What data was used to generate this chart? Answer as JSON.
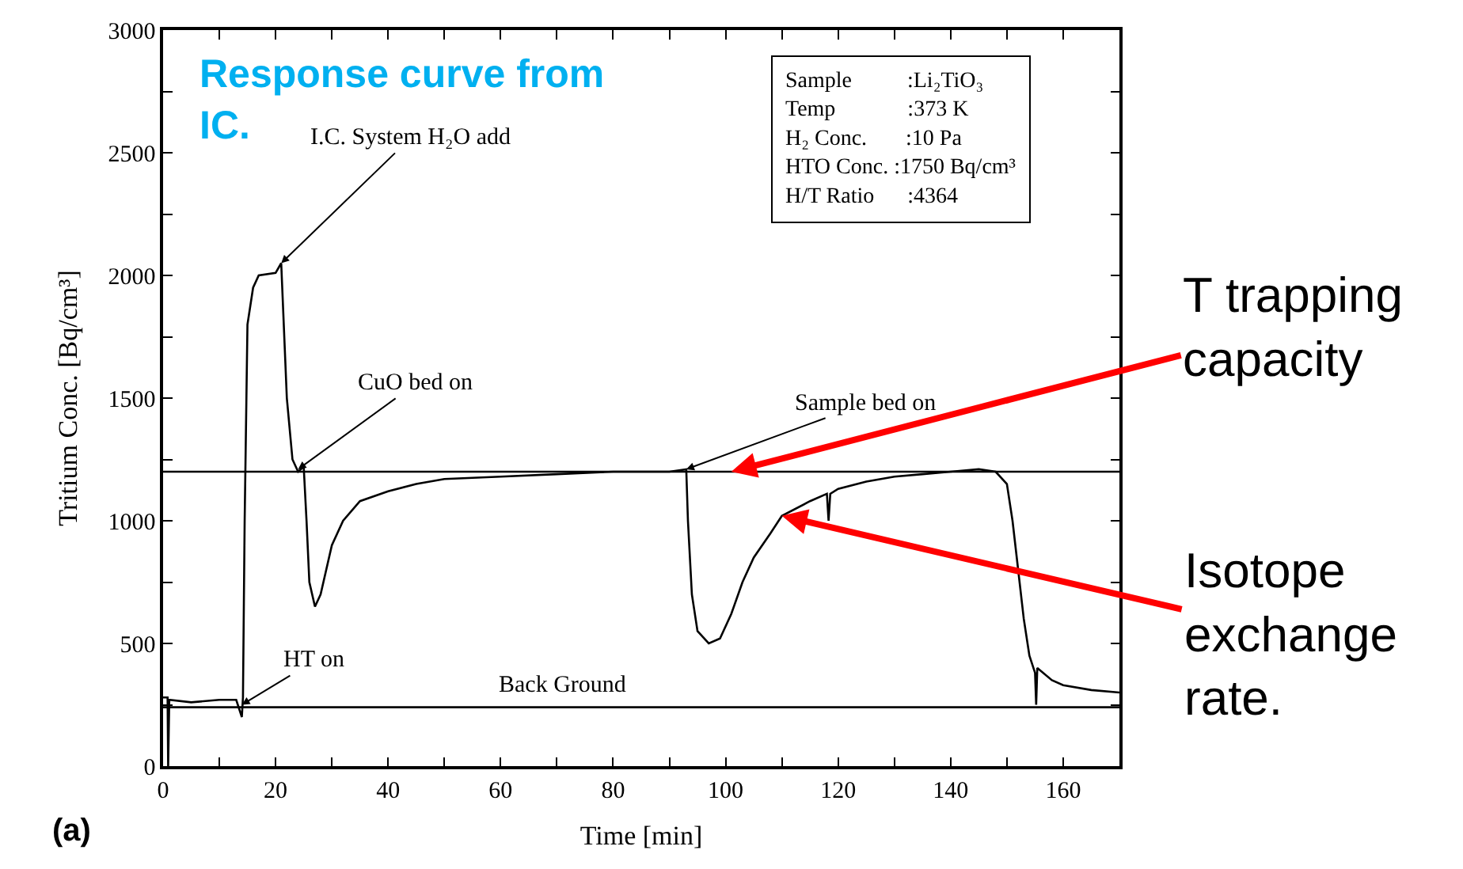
{
  "chart_data": {
    "type": "line",
    "xlabel": "Time [min]",
    "ylabel": "Tritium Conc. [Bq/cm³]",
    "x": [
      0,
      0.8,
      0.9,
      1.1,
      5,
      10,
      13,
      14,
      14.2,
      14.5,
      15,
      16,
      17,
      20,
      21,
      22,
      23,
      24,
      25,
      25.5,
      26,
      27,
      28,
      30,
      32,
      35,
      40,
      45,
      50,
      60,
      70,
      80,
      90,
      93,
      93.3,
      94,
      95,
      97,
      99,
      101,
      103,
      105,
      108,
      110,
      115,
      118,
      118.3,
      118.6,
      120,
      125,
      130,
      135,
      140,
      145,
      148,
      150,
      151,
      152,
      153,
      154,
      155,
      155.2,
      155.4,
      158,
      160,
      165,
      170
    ],
    "series": [
      {
        "color": "#000000",
        "values": [
          280,
          280,
          0,
          270,
          260,
          270,
          270,
          200,
          280,
          1000,
          1800,
          1950,
          2000,
          2010,
          2050,
          1500,
          1250,
          1200,
          1220,
          1000,
          750,
          650,
          700,
          900,
          1000,
          1080,
          1120,
          1150,
          1170,
          1180,
          1190,
          1200,
          1200,
          1210,
          1000,
          700,
          550,
          500,
          520,
          620,
          750,
          850,
          950,
          1020,
          1080,
          1110,
          1000,
          1110,
          1130,
          1160,
          1180,
          1190,
          1200,
          1210,
          1200,
          1150,
          1000,
          800,
          600,
          450,
          380,
          250,
          400,
          350,
          330,
          310,
          300
        ]
      }
    ],
    "xlim": [
      0,
      170
    ],
    "ylim": [
      0,
      3000
    ],
    "xticks": [
      0,
      {
        "value": 10,
        "label": null
      },
      20,
      {
        "value": 30,
        "label": null
      },
      40,
      {
        "value": 50,
        "label": null
      },
      60,
      {
        "value": 70,
        "label": null
      },
      80,
      {
        "value": 90,
        "label": null
      },
      100,
      {
        "value": 110,
        "label": null
      },
      120,
      {
        "value": 130,
        "label": null
      },
      140,
      {
        "value": 150,
        "label": null
      },
      160
    ],
    "yticks": [
      0,
      {
        "value": 250,
        "label": null
      },
      500,
      {
        "value": 750,
        "label": null
      },
      1000,
      {
        "value": 1250,
        "label": null
      },
      1500,
      {
        "value": 1750,
        "label": null
      },
      2000,
      {
        "value": 2250,
        "label": null
      },
      2500,
      {
        "value": 2750,
        "label": null
      },
      3000
    ],
    "ref_lines": [
      {
        "axis": "y",
        "value": 1200,
        "color": "#000000"
      },
      {
        "axis": "y",
        "value": 240,
        "label": "Back Ground",
        "color": "#000000"
      }
    ],
    "annotations": [
      "Response curve from\nIC.",
      {
        "text": "I.C. System H₂O add",
        "x": 21,
        "y": 2050
      },
      {
        "text": "CuO bed on",
        "x": 24,
        "y": 1210
      },
      {
        "text": "Sample bed on",
        "x": 93,
        "y": 1210
      },
      {
        "text": "HT on",
        "x": 14,
        "y": 250
      },
      "Sample          :Li₂TiO₃\nTemp             :373 K\nH₂ Conc.       :10 Pa\nHTO Conc. :1750 Bq/cm³\nH/T Ratio      :4364",
      {
        "text": "T trapping\ncapacity",
        "x": 101,
        "y": 1200
      },
      {
        "text": "Isotope\nexchange\nrate.",
        "x": 110,
        "y": 1020
      },
      "(a)"
    ],
    "marker": "none",
    "line_style": "solid"
  }
}
